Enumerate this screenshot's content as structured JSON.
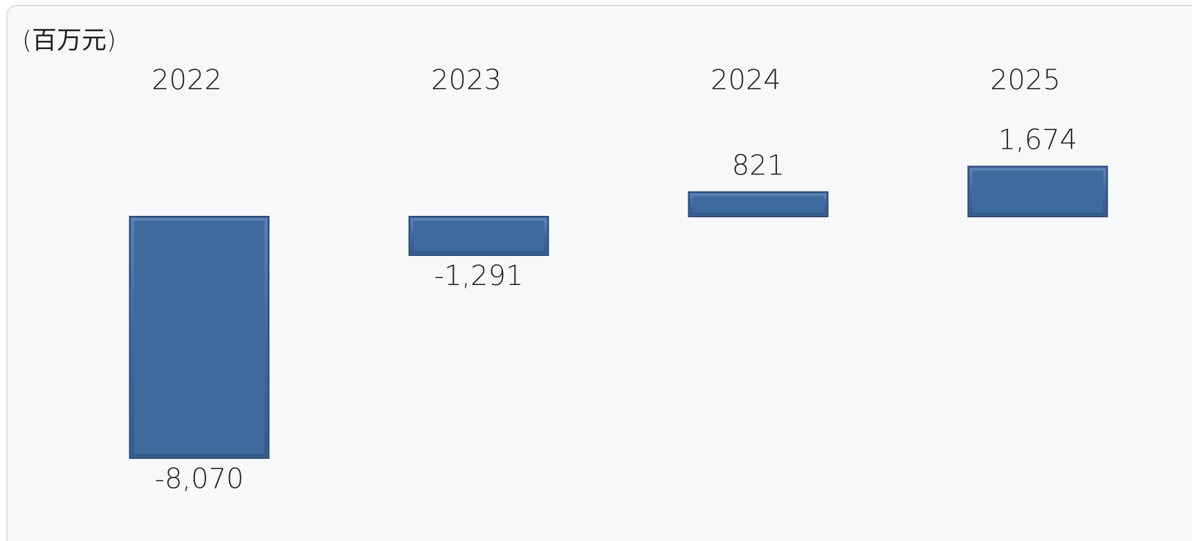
{
  "chart_data": {
    "type": "bar",
    "unit_label": "(百万元)",
    "categories": [
      "2022",
      "2023",
      "2024",
      "2025"
    ],
    "values": [
      -8070,
      -1291,
      821,
      1674
    ],
    "value_labels": [
      "-8,070",
      "-1,291",
      "821",
      "1,674"
    ],
    "color": "#3e6a9e",
    "ylim": [
      -9000,
      2000
    ]
  }
}
